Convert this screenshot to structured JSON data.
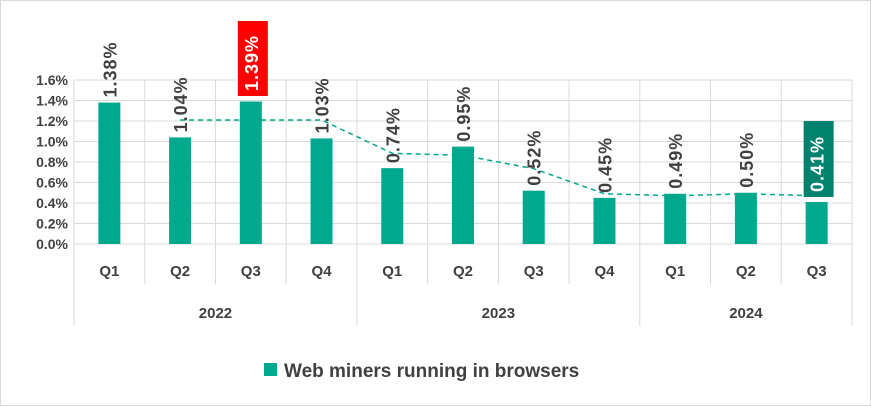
{
  "colors": {
    "bar": "#00a88e",
    "trend": "#00a88e",
    "highlight_max": "#ff0000",
    "highlight_last": "#00826e",
    "grid": "#d9d9d9",
    "text": "#404040"
  },
  "chart_data": {
    "type": "bar",
    "categories": [
      "Q1",
      "Q2",
      "Q3",
      "Q4",
      "Q1",
      "Q2",
      "Q3",
      "Q4",
      "Q1",
      "Q2",
      "Q3"
    ],
    "groups": [
      {
        "label": "2022",
        "count": 4
      },
      {
        "label": "2023",
        "count": 4
      },
      {
        "label": "2024",
        "count": 3
      }
    ],
    "series": [
      {
        "name": "Web miners running in browsers",
        "values": [
          1.38,
          1.04,
          1.39,
          1.03,
          0.74,
          0.95,
          0.52,
          0.45,
          0.49,
          0.5,
          0.41
        ],
        "data_labels": [
          "1.38%",
          "1.04%",
          "1.39%",
          "1.03%",
          "0.74%",
          "0.95%",
          "0.52%",
          "0.45%",
          "0.49%",
          "0.50%",
          "0.41%"
        ]
      }
    ],
    "trendline": {
      "style": "dashed",
      "from_index": 1,
      "values": [
        1.21,
        1.21,
        1.21,
        0.885,
        0.865,
        0.735,
        0.49,
        0.47,
        0.49,
        0.47
      ]
    },
    "highlighted_labels": [
      {
        "index": 2,
        "color_key": "highlight_max"
      },
      {
        "index": 10,
        "color_key": "highlight_last"
      }
    ],
    "y_ticks": [
      "0.0%",
      "0.2%",
      "0.4%",
      "0.6%",
      "0.8%",
      "1.0%",
      "1.2%",
      "1.4%",
      "1.6%"
    ],
    "ylim": [
      0,
      1.6
    ],
    "grid": true,
    "legend": {
      "position": "bottom",
      "entries": [
        "Web miners running in browsers"
      ]
    },
    "title": "",
    "xlabel": "",
    "ylabel": ""
  }
}
